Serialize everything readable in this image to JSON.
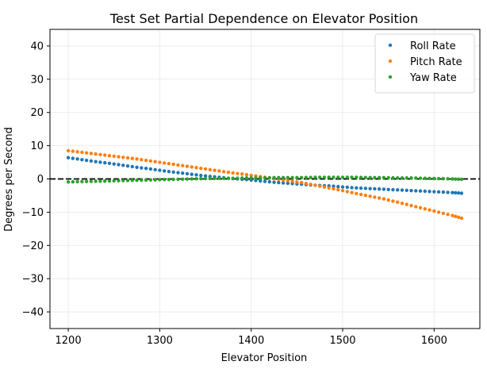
{
  "chart_data": {
    "type": "scatter",
    "title": "Test Set Partial Dependence on Elevator Position",
    "xlabel": "Elevator Position",
    "ylabel": "Degrees per Second",
    "xlim": [
      1180,
      1650
    ],
    "ylim": [
      -45,
      45
    ],
    "xticks": [
      1200,
      1300,
      1400,
      1500,
      1600
    ],
    "yticks": [
      -40,
      -30,
      -20,
      -10,
      0,
      10,
      20,
      30,
      40
    ],
    "grid": true,
    "legend_position": "top-right",
    "reference_line": {
      "y": 0,
      "style": "dashed",
      "color": "#000000"
    },
    "x": [
      1200,
      1215,
      1230,
      1245,
      1260,
      1275,
      1290,
      1305,
      1320,
      1335,
      1350,
      1365,
      1380,
      1395,
      1410,
      1425,
      1440,
      1455,
      1470,
      1485,
      1500,
      1515,
      1530,
      1545,
      1560,
      1575,
      1590,
      1605,
      1620,
      1630
    ],
    "series": [
      {
        "name": "Roll Rate",
        "color": "#1f77b4",
        "values": [
          6.4,
          5.8,
          5.2,
          4.7,
          4.1,
          3.5,
          3.0,
          2.4,
          1.9,
          1.4,
          0.9,
          0.5,
          0.1,
          -0.2,
          -0.6,
          -1.0,
          -1.3,
          -1.6,
          -1.9,
          -2.1,
          -2.4,
          -2.7,
          -2.9,
          -3.1,
          -3.3,
          -3.5,
          -3.7,
          -3.9,
          -4.1,
          -4.3
        ]
      },
      {
        "name": "Pitch Rate",
        "color": "#ff7f0e",
        "values": [
          8.5,
          8.0,
          7.5,
          7.0,
          6.5,
          6.0,
          5.4,
          4.8,
          4.2,
          3.6,
          3.0,
          2.4,
          1.8,
          1.3,
          0.7,
          0.1,
          -0.5,
          -1.1,
          -1.9,
          -2.7,
          -3.5,
          -4.4,
          -5.2,
          -6.0,
          -7.0,
          -8.0,
          -9.0,
          -10.0,
          -11.0,
          -11.8
        ]
      },
      {
        "name": "Yaw Rate",
        "color": "#2ca02c",
        "values": [
          -0.9,
          -0.8,
          -0.7,
          -0.6,
          -0.5,
          -0.4,
          -0.3,
          -0.2,
          -0.1,
          0.0,
          0.1,
          0.2,
          0.2,
          0.3,
          0.3,
          0.4,
          0.4,
          0.4,
          0.5,
          0.5,
          0.5,
          0.5,
          0.4,
          0.4,
          0.3,
          0.3,
          0.2,
          0.1,
          0.0,
          -0.1
        ]
      }
    ]
  }
}
